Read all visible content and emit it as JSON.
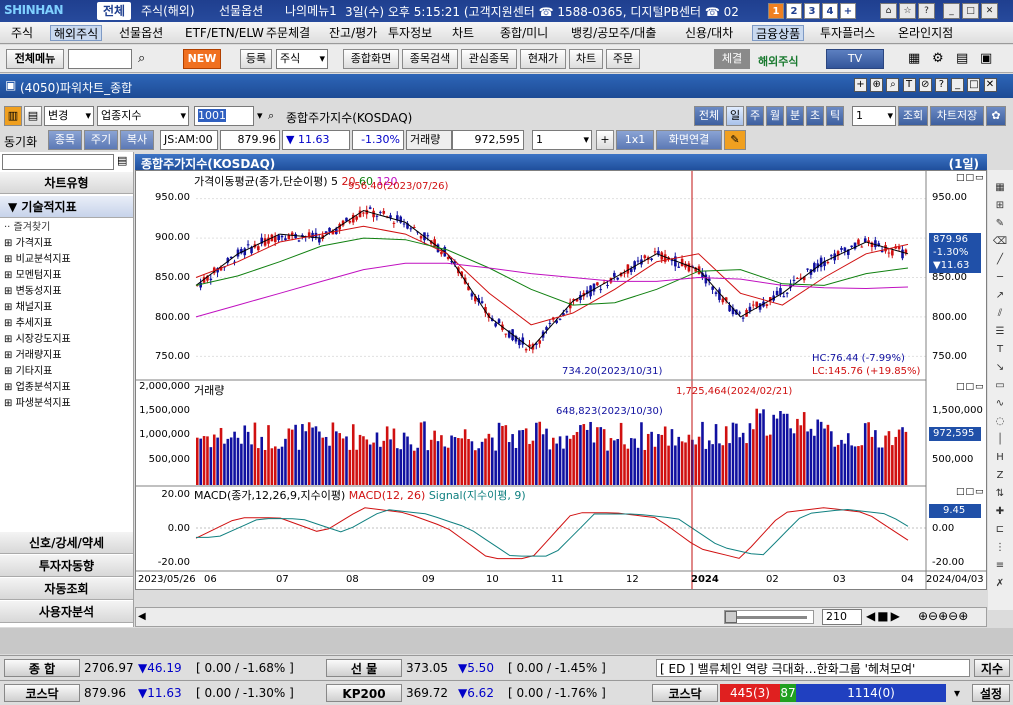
{
  "titlebar": {
    "logo": "SHINHAN",
    "tabs": [
      "전체",
      "주식(해외)",
      "선물옵션",
      "나의메뉴1"
    ],
    "status": "3일(수) 오후 5:15:21 (고객지원센터 ☎ 1588-0365, 디지털PB센터 ☎ 02",
    "nums": [
      "1",
      "2",
      "3",
      "4",
      "+"
    ]
  },
  "menu": [
    "주식",
    "해외주식",
    "선물옵션",
    "ETF/ETN/ELW",
    "주문체결",
    "잔고/평가",
    "투자정보",
    "차트",
    "종합/미니",
    "뱅킹/공모주/대출",
    "신용/대차",
    "금융상품",
    "투자플러스",
    "온라인지점"
  ],
  "toolbar": {
    "menu_btn": "전체메뉴",
    "new_btn": "NEW",
    "reg": "등록",
    "select": "주식",
    "btns": [
      "종합화면",
      "종목검색",
      "관심종목",
      "현재가",
      "차트",
      "주문"
    ],
    "che": "체결",
    "overseas": "해외주식",
    "tv": "TV"
  },
  "window_title": "(4050)파워차트_종합",
  "row1": {
    "change": "변경",
    "type": "업종지수",
    "code": "1001",
    "name": "종합주가지수(KOSDAQ)",
    "periods": [
      "전체",
      "일",
      "주",
      "월",
      "분",
      "초",
      "틱"
    ],
    "count": "1",
    "query": "조회",
    "save": "차트저장"
  },
  "row2": {
    "sync": "동기화",
    "tabs": [
      "종목",
      "주기",
      "복사"
    ],
    "time": "JS:AM:00",
    "price": "879.96",
    "change": "▼ 11.63",
    "pct": "-1.30%",
    "vol_label": "거래량",
    "volume": "972,595",
    "mult": "1",
    "ratio": "1x1",
    "link": "화면연결"
  },
  "left": {
    "chart_type": "차트유형",
    "tech": "▼ 기술적지표",
    "fav": "즐겨찾기",
    "items": [
      "가격지표",
      "비교분석지표",
      "모멘텀지표",
      "변동성지표",
      "채널지표",
      "추세지표",
      "시장강도지표",
      "거래량지표",
      "기타지표",
      "업종분석지표",
      "파생분석지표"
    ],
    "bottom": [
      "신호/강세/약세",
      "투자자동향",
      "자동조회",
      "사용자분석"
    ]
  },
  "chart_header": {
    "title": "종합주가지수(KOSDAQ)",
    "period": "(1일)"
  },
  "chart_data": {
    "type": "candlestick",
    "price_legend": "가격이동평균(종가,단순이평) 5",
    "ma_periods": [
      "20",
      "60",
      "120"
    ],
    "price_ticks": [
      "950.00",
      "900.00",
      "850.00",
      "800.00",
      "750.00"
    ],
    "high_note": "956.40(2023/07/26)",
    "low_note": "734.20(2023/10/31)",
    "hc": "HC:76.44 (-7.99%)",
    "lc": "LC:145.76 (+19.85%)",
    "last": {
      "price": "879.96",
      "pct": "-1.30%",
      "chg": "▼11.63"
    },
    "volume_legend": "거래량",
    "volume_ticks": [
      "2,000,000",
      "1,500,000",
      "1,000,000",
      "500,000"
    ],
    "vol_high": "1,725,464(2024/02/21)",
    "vol_low": "648,823(2023/10/30)",
    "vol_last": "972,595",
    "macd_legend": "MACD(종가,12,26,9,지수이평)",
    "macd_name": "MACD(12, 26)",
    "signal_name": "Signal(지수이평, 9)",
    "macd_ticks": [
      "20.00",
      "0.00",
      "-20.00"
    ],
    "macd_last": "9.45",
    "x_labels": [
      "2023/05/26",
      "06",
      "07",
      "08",
      "09",
      "10",
      "11",
      "12",
      "2024",
      "02",
      "03",
      "04",
      "2024/04/03"
    ],
    "ylim": [
      720,
      980
    ],
    "ma": {
      "ma5": [
        840,
        880,
        905,
        900,
        935,
        920,
        880,
        800,
        760,
        820,
        850,
        880,
        860,
        800,
        830,
        870,
        895,
        880
      ],
      "ma20": [
        850,
        870,
        895,
        905,
        915,
        905,
        880,
        830,
        790,
        805,
        835,
        870,
        880,
        830,
        815,
        850,
        880,
        892
      ],
      "ma60": [
        840,
        852,
        870,
        890,
        900,
        898,
        885,
        862,
        835,
        815,
        818,
        835,
        858,
        860,
        842,
        840,
        855,
        862
      ],
      "ma120": [
        800,
        815,
        830,
        845,
        860,
        868,
        868,
        862,
        855,
        850,
        845,
        845,
        850,
        848,
        840,
        837,
        836,
        838
      ]
    }
  },
  "scroll": {
    "count": "210"
  },
  "bottom": {
    "r1": [
      {
        "lab": "종 합",
        "price": "2706.97",
        "chg": "▼46.19",
        "range": "[ 0.00  / -1.68% ]"
      },
      {
        "lab": "선 물",
        "price": "373.05",
        "chg": "▼5.50",
        "range": "[ 0.00  / -1.45% ]"
      }
    ],
    "news": "[ ED ] 밸류체인 역량 극대화…한화그룹 '헤쳐모여'",
    "news_btn": "지수",
    "r2": [
      {
        "lab": "코스닥",
        "price": "879.96",
        "chg": "▼11.63",
        "range": "[ 0.00  / -1.30% ]"
      },
      {
        "lab": "KP200",
        "price": "369.72",
        "chg": "▼6.62",
        "range": "[ 0.00  / -1.76% ]"
      }
    ],
    "kosdaq_lab": "코스닥",
    "breadth": {
      "up": "445(3)",
      "flat": "87",
      "down": "1114(0)"
    },
    "setting": "설정"
  },
  "colors": {
    "up": "#d01010",
    "down": "#1010a0",
    "ma5": "#000000",
    "ma20": "#d01010",
    "ma60": "#108010",
    "ma120": "#c010c0"
  }
}
